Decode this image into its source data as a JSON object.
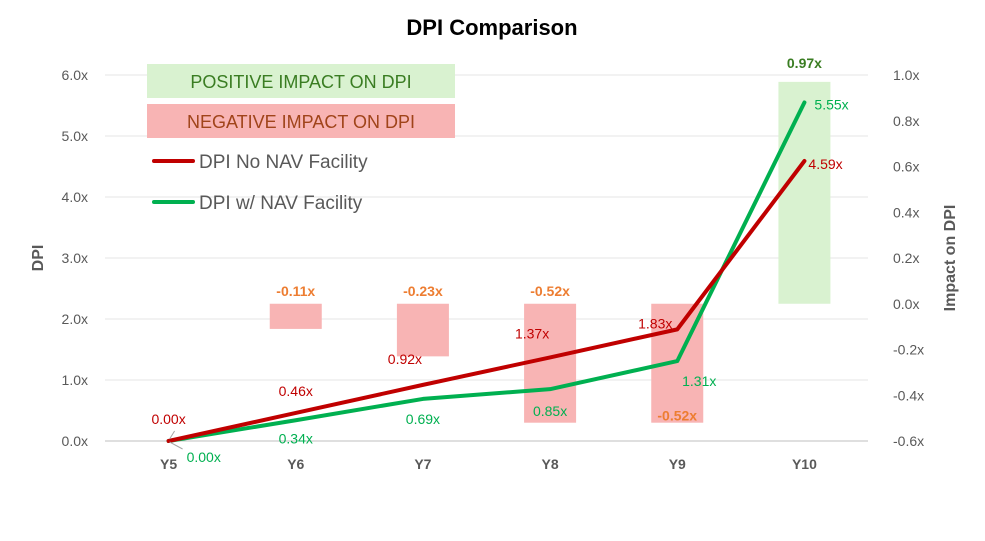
{
  "chart_data": {
    "type": "line",
    "title": "DPI Comparison",
    "categories": [
      "Y5",
      "Y6",
      "Y7",
      "Y8",
      "Y9",
      "Y10"
    ],
    "ylabel": "DPI",
    "y2label": "Impact on DPI",
    "ylim": [
      0,
      6
    ],
    "yticks": [
      "0.0x",
      "1.0x",
      "2.0x",
      "3.0x",
      "4.0x",
      "5.0x",
      "6.0x"
    ],
    "y2lim": [
      -0.6,
      1.0
    ],
    "y2ticks": [
      "-0.6x",
      "-0.4x",
      "-0.2x",
      "0.0x",
      "0.2x",
      "0.4x",
      "0.6x",
      "0.8x",
      "1.0x"
    ],
    "grid": true,
    "series": [
      {
        "name": "DPI No NAV Facility",
        "color": "#c00000",
        "values": [
          0.0,
          0.46,
          0.92,
          1.37,
          1.83,
          4.59
        ],
        "labels": [
          "0.00x",
          "0.46x",
          "0.92x",
          "1.37x",
          "1.83x",
          "4.59x"
        ]
      },
      {
        "name": "DPI w/ NAV Facility",
        "color": "#00b050",
        "values": [
          0.0,
          0.34,
          0.69,
          0.85,
          1.31,
          5.55
        ],
        "labels": [
          "0.00x",
          "0.34x",
          "0.69x",
          "0.85x",
          "1.31x",
          "5.55x"
        ]
      }
    ],
    "impact": {
      "axis": "secondary",
      "values": [
        null,
        -0.11,
        -0.23,
        -0.52,
        -0.52,
        0.97
      ],
      "labels": [
        "",
        "-0.11x",
        "-0.23x",
        "-0.52x",
        "-0.52x",
        "0.97x"
      ],
      "positive_color": "#d9f2d0",
      "negative_color": "#f8b4b4",
      "positive_label_color": "#3a7d22",
      "negative_label_color": "#ed7d31"
    },
    "key_boxes": {
      "positive": "POSITIVE IMPACT ON DPI",
      "negative": "NEGATIVE IMPACT ON DPI",
      "positive_fill": "#d9f2d0",
      "negative_fill": "#f8b4b4",
      "positive_text_color": "#3a7d22",
      "negative_text_color": "#a0441a"
    }
  }
}
